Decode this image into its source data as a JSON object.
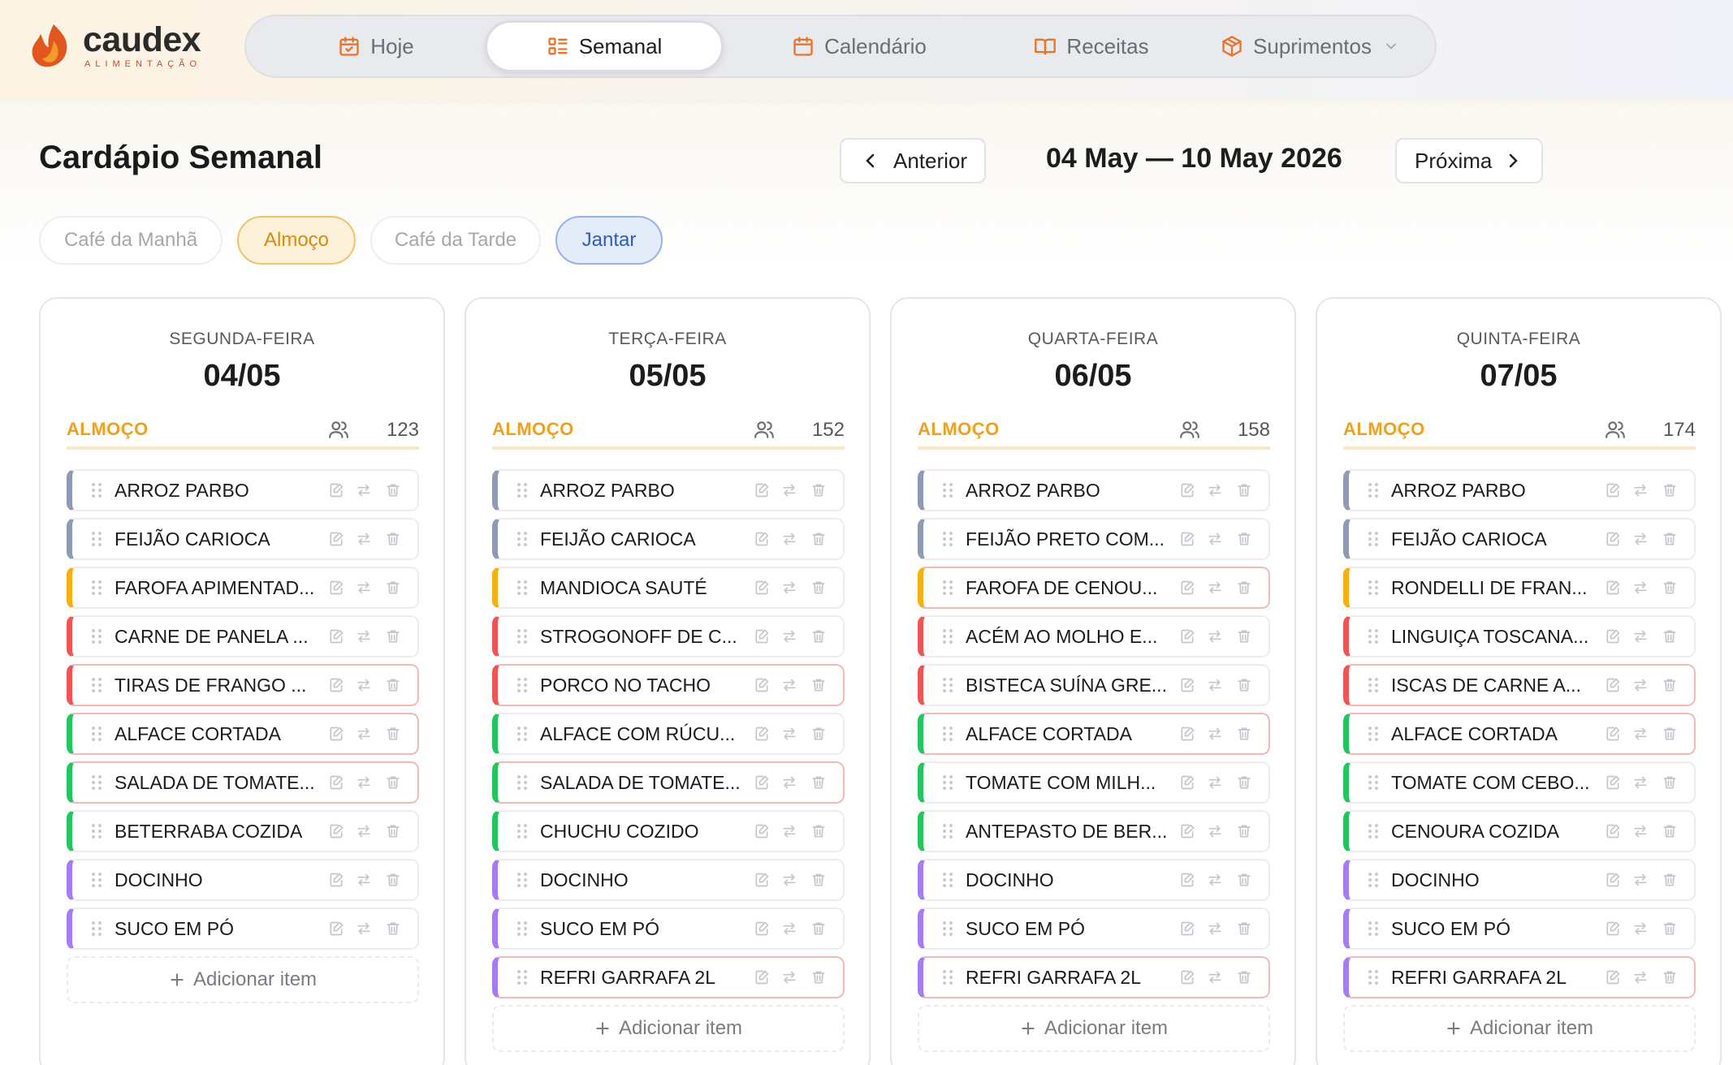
{
  "brand": {
    "name": "caudex",
    "tagline": "ALIMENTAÇÃO"
  },
  "nav": {
    "tabs": [
      {
        "label": "Hoje",
        "icon": "calendar-check-icon"
      },
      {
        "label": "Semanal",
        "icon": "list-grid-icon",
        "active": true
      },
      {
        "label": "Calendário",
        "icon": "calendar-icon"
      },
      {
        "label": "Receitas",
        "icon": "book-open-icon"
      },
      {
        "label": "Suprimentos",
        "icon": "package-icon",
        "has_dropdown": true
      }
    ]
  },
  "page": {
    "title": "Cardápio Semanal",
    "prev_label": "Anterior",
    "next_label": "Próxima",
    "week_range": "04 May — 10 May 2026"
  },
  "meal_chips": [
    {
      "label": "Café da Manhã",
      "state": "inactive"
    },
    {
      "label": "Almoço",
      "state": "active-orange"
    },
    {
      "label": "Café da Tarde",
      "state": "inactive"
    },
    {
      "label": "Jantar",
      "state": "active-blue"
    }
  ],
  "add_item_label": "Adicionar item",
  "days": [
    {
      "weekday": "SEGUNDA-FEIRA",
      "date": "04/05",
      "meal": "ALMOÇO",
      "count": "123",
      "items": [
        {
          "name": "ARROZ PARBO",
          "color": "gray"
        },
        {
          "name": "FEIJÃO CARIOCA",
          "color": "gray"
        },
        {
          "name": "FAROFA APIMENTAD...",
          "color": "yellow"
        },
        {
          "name": "CARNE DE PANELA ...",
          "color": "red"
        },
        {
          "name": "TIRAS DE FRANGO ...",
          "color": "red",
          "highlight": true
        },
        {
          "name": "ALFACE CORTADA",
          "color": "green",
          "highlight": true
        },
        {
          "name": "SALADA DE TOMATE...",
          "color": "green",
          "highlight": true
        },
        {
          "name": "BETERRABA COZIDA",
          "color": "green"
        },
        {
          "name": "DOCINHO",
          "color": "purple"
        },
        {
          "name": "SUCO EM PÓ",
          "color": "purple"
        }
      ]
    },
    {
      "weekday": "TERÇA-FEIRA",
      "date": "05/05",
      "meal": "ALMOÇO",
      "count": "152",
      "items": [
        {
          "name": "ARROZ PARBO",
          "color": "gray"
        },
        {
          "name": "FEIJÃO CARIOCA",
          "color": "gray"
        },
        {
          "name": "MANDIOCA SAUTÉ",
          "color": "yellow"
        },
        {
          "name": "STROGONOFF DE C...",
          "color": "red"
        },
        {
          "name": "PORCO NO TACHO",
          "color": "red",
          "highlight": true
        },
        {
          "name": "ALFACE COM RÚCU...",
          "color": "green"
        },
        {
          "name": "SALADA DE TOMATE...",
          "color": "green",
          "highlight": true
        },
        {
          "name": "CHUCHU COZIDO",
          "color": "green"
        },
        {
          "name": "DOCINHO",
          "color": "purple"
        },
        {
          "name": "SUCO EM PÓ",
          "color": "purple"
        },
        {
          "name": "REFRI GARRAFA 2L",
          "color": "purple",
          "highlight": true
        }
      ]
    },
    {
      "weekday": "QUARTA-FEIRA",
      "date": "06/05",
      "meal": "ALMOÇO",
      "count": "158",
      "items": [
        {
          "name": "ARROZ PARBO",
          "color": "gray"
        },
        {
          "name": "FEIJÃO PRETO COM...",
          "color": "gray"
        },
        {
          "name": "FAROFA DE CENOU...",
          "color": "yellow",
          "highlight": true
        },
        {
          "name": "ACÉM AO MOLHO E...",
          "color": "red"
        },
        {
          "name": "BISTECA SUÍNA GRE...",
          "color": "red"
        },
        {
          "name": "ALFACE CORTADA",
          "color": "green",
          "highlight": true
        },
        {
          "name": "TOMATE COM MILH...",
          "color": "green"
        },
        {
          "name": "ANTEPASTO DE BER...",
          "color": "green"
        },
        {
          "name": "DOCINHO",
          "color": "purple"
        },
        {
          "name": "SUCO EM PÓ",
          "color": "purple"
        },
        {
          "name": "REFRI GARRAFA 2L",
          "color": "purple",
          "highlight": true
        }
      ]
    },
    {
      "weekday": "QUINTA-FEIRA",
      "date": "07/05",
      "meal": "ALMOÇO",
      "count": "174",
      "items": [
        {
          "name": "ARROZ PARBO",
          "color": "gray"
        },
        {
          "name": "FEIJÃO CARIOCA",
          "color": "gray"
        },
        {
          "name": "RONDELLI DE FRAN...",
          "color": "yellow"
        },
        {
          "name": "LINGUIÇA TOSCANA...",
          "color": "red"
        },
        {
          "name": "ISCAS DE CARNE A...",
          "color": "red",
          "highlight": true
        },
        {
          "name": "ALFACE CORTADA",
          "color": "green",
          "highlight": true
        },
        {
          "name": "TOMATE COM CEBO...",
          "color": "green"
        },
        {
          "name": "CENOURA COZIDA",
          "color": "green"
        },
        {
          "name": "DOCINHO",
          "color": "purple"
        },
        {
          "name": "SUCO EM PÓ",
          "color": "purple"
        },
        {
          "name": "REFRI GARRAFA 2L",
          "color": "purple",
          "highlight": true
        }
      ]
    }
  ]
}
